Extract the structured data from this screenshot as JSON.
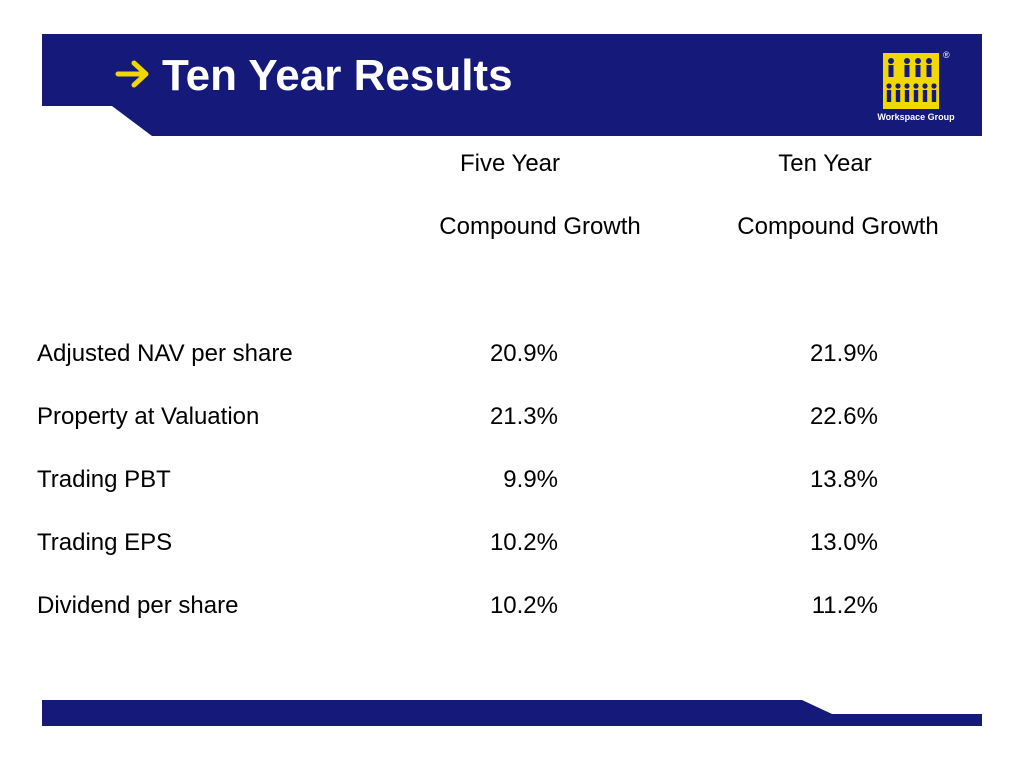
{
  "header": {
    "title": "Ten Year Results",
    "background_color": "#14197a",
    "arrow_color": "#f0d800",
    "logo": {
      "icon": "workspace-group-people-logo",
      "text": "Workspace Group",
      "registered": "®"
    }
  },
  "table": {
    "columns": [
      {
        "line1": "Five Year",
        "line2": "Compound Growth"
      },
      {
        "line1": "Ten Year",
        "line2": "Compound Growth"
      }
    ],
    "rows": [
      {
        "label": "Adjusted NAV per share",
        "five_year": "20.9%",
        "ten_year": "21.9%"
      },
      {
        "label": "Property at Valuation",
        "five_year": "21.3%",
        "ten_year": "22.6%"
      },
      {
        "label": "Trading PBT",
        "five_year": "9.9%",
        "ten_year": "13.8%"
      },
      {
        "label": "Trading EPS",
        "five_year": "10.2%",
        "ten_year": "13.0%"
      },
      {
        "label": "Dividend per share",
        "five_year": "10.2%",
        "ten_year": "11.2%"
      }
    ]
  }
}
